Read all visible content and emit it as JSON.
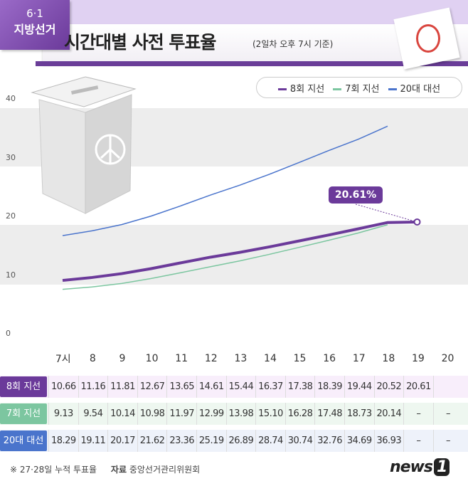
{
  "header": {
    "tag_line1": "6·1",
    "tag_line2": "지방선거",
    "title": "시간대별 사전 투표율",
    "subtitle": "(2일차 오후 7시 기준)"
  },
  "legend": [
    {
      "label": "8회 지선",
      "color": "#6b3a9a"
    },
    {
      "label": "7회 지선",
      "color": "#7cc6a0"
    },
    {
      "label": "20대 대선",
      "color": "#4a74cc"
    }
  ],
  "chart_data": {
    "type": "line",
    "ylim": [
      0,
      40
    ],
    "yticks": [
      "0",
      "10",
      "20",
      "30",
      "40"
    ],
    "categories": [
      "7시",
      "8",
      "9",
      "10",
      "11",
      "12",
      "13",
      "14",
      "15",
      "16",
      "17",
      "18",
      "19",
      "20"
    ],
    "series": [
      {
        "name": "8회 지선",
        "color": "#6b3a9a",
        "values": [
          10.66,
          11.16,
          11.81,
          12.67,
          13.65,
          14.61,
          15.44,
          16.37,
          17.38,
          18.39,
          19.44,
          20.52,
          20.61,
          null
        ]
      },
      {
        "name": "7회 지선",
        "color": "#7cc6a0",
        "values": [
          9.13,
          9.54,
          10.14,
          10.98,
          11.97,
          12.99,
          13.98,
          15.1,
          16.28,
          17.48,
          18.73,
          20.14,
          null,
          null
        ]
      },
      {
        "name": "20대 대선",
        "color": "#4a74cc",
        "values": [
          18.29,
          19.11,
          20.17,
          21.62,
          23.36,
          25.19,
          26.89,
          28.74,
          30.74,
          32.76,
          34.69,
          36.93,
          null,
          null
        ]
      }
    ],
    "annotation": "20.61%"
  },
  "table": {
    "rows": [
      {
        "label": "8회 지선",
        "color": "#6b3a9a",
        "bg": "#f8eefb",
        "cells": [
          "10.66",
          "11.16",
          "11.81",
          "12.67",
          "13.65",
          "14.61",
          "15.44",
          "16.37",
          "17.38",
          "18.39",
          "19.44",
          "20.52",
          "20.61",
          ""
        ]
      },
      {
        "label": "7회 지선",
        "color": "#7cc6a0",
        "bg": "#eef7f0",
        "cells": [
          "9.13",
          "9.54",
          "10.14",
          "10.98",
          "11.97",
          "12.99",
          "13.98",
          "15.10",
          "16.28",
          "17.48",
          "18.73",
          "20.14",
          "–",
          "–"
        ]
      },
      {
        "label": "20대 대선",
        "color": "#4a74cc",
        "bg": "#eef2fa",
        "cells": [
          "18.29",
          "19.11",
          "20.17",
          "21.62",
          "23.36",
          "25.19",
          "26.89",
          "28.74",
          "30.74",
          "32.76",
          "34.69",
          "36.93",
          "–",
          "–"
        ]
      }
    ]
  },
  "footer": {
    "note": "※ 27·28일 누적 투표율",
    "source_label": "자료",
    "source": "중앙선거관리위원회",
    "logo": "news1"
  }
}
